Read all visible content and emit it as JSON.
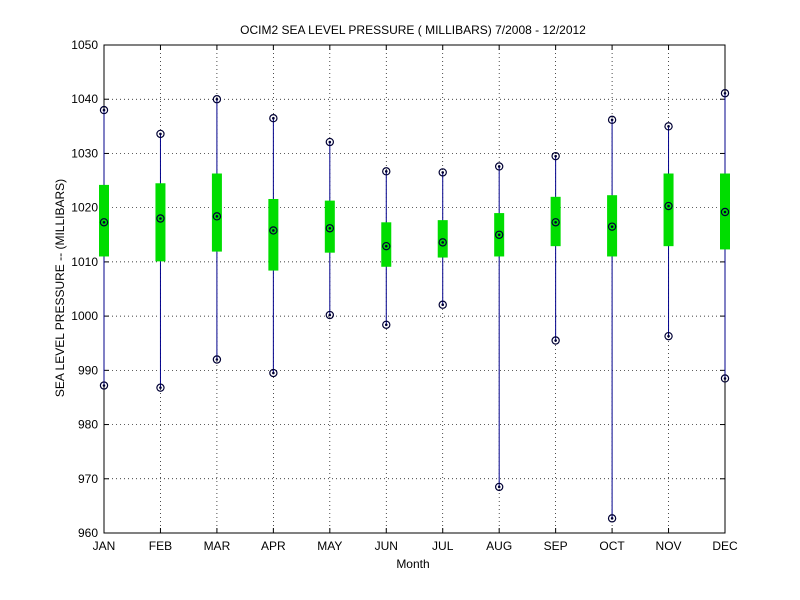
{
  "chart_data": {
    "type": "box",
    "title": "OCIM2  SEA LEVEL PRESSURE ( MILLIBARS) 7/2008 - 12/2012",
    "xlabel": "Month",
    "ylabel": "SEA LEVEL PRESSURE -- (MILLIBARS)",
    "ylim": [
      960,
      1050
    ],
    "yticks": [
      960,
      970,
      980,
      990,
      1000,
      1010,
      1020,
      1030,
      1040,
      1050
    ],
    "grid": true,
    "categories": [
      "JAN",
      "FEB",
      "MAR",
      "APR",
      "MAY",
      "JUN",
      "JUL",
      "AUG",
      "SEP",
      "OCT",
      "NOV",
      "DEC"
    ],
    "series": [
      {
        "min": 987.2,
        "q1": 1011.0,
        "median": 1017.3,
        "q3": 1024.2,
        "max": 1038.0
      },
      {
        "min": 986.8,
        "q1": 1010.1,
        "median": 1018.0,
        "q3": 1024.5,
        "max": 1033.6
      },
      {
        "min": 992.0,
        "q1": 1011.9,
        "median": 1018.4,
        "q3": 1026.3,
        "max": 1040.0
      },
      {
        "min": 989.5,
        "q1": 1008.4,
        "median": 1015.8,
        "q3": 1021.6,
        "max": 1036.5
      },
      {
        "min": 1000.2,
        "q1": 1011.7,
        "median": 1016.2,
        "q3": 1021.3,
        "max": 1032.1
      },
      {
        "min": 998.4,
        "q1": 1009.1,
        "median": 1012.9,
        "q3": 1017.3,
        "max": 1026.7
      },
      {
        "min": 1002.1,
        "q1": 1010.8,
        "median": 1013.6,
        "q3": 1017.7,
        "max": 1026.5
      },
      {
        "min": 968.5,
        "q1": 1011.0,
        "median": 1015.0,
        "q3": 1019.0,
        "max": 1027.6
      },
      {
        "min": 995.5,
        "q1": 1012.9,
        "median": 1017.3,
        "q3": 1022.0,
        "max": 1029.5
      },
      {
        "min": 962.7,
        "q1": 1011.0,
        "median": 1016.5,
        "q3": 1022.3,
        "max": 1036.2
      },
      {
        "min": 996.3,
        "q1": 1012.9,
        "median": 1020.3,
        "q3": 1026.3,
        "max": 1035.0
      },
      {
        "min": 988.5,
        "q1": 1012.3,
        "median": 1019.2,
        "q3": 1026.3,
        "max": 1041.1
      }
    ],
    "colors": {
      "whisker": "#00008b",
      "box": "#00dd00",
      "marker": "#000033",
      "grid": "#000000",
      "axis": "#000000"
    }
  }
}
